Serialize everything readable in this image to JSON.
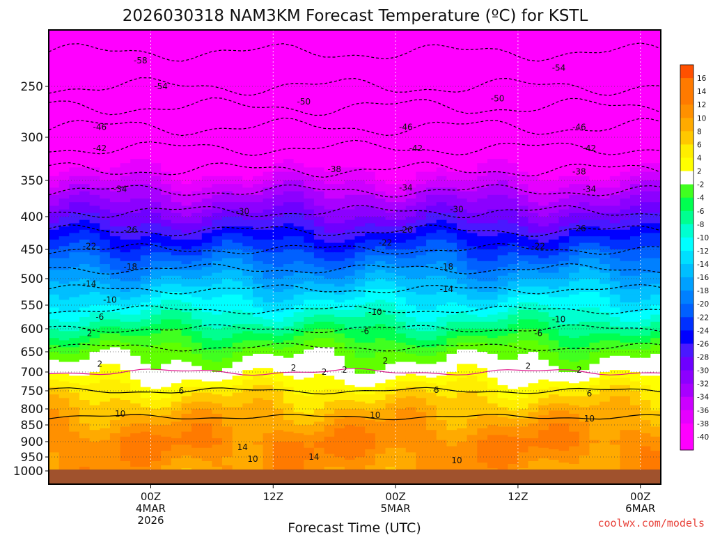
{
  "chart_data": {
    "type": "heatmap",
    "title": "2026030318 NAM3KM Forecast Temperature (ºC) for KSTL",
    "xlabel": "Forecast Time (UTC)",
    "ylabel": "",
    "credit": "coolwx.com/models",
    "x_range_hours": [
      -4,
      56
    ],
    "x_ticks": [
      {
        "hour": 6,
        "lines": [
          "00Z",
          "4MAR",
          "2026"
        ]
      },
      {
        "hour": 18,
        "lines": [
          "12Z"
        ]
      },
      {
        "hour": 30,
        "lines": [
          "00Z",
          "5MAR"
        ]
      },
      {
        "hour": 42,
        "lines": [
          "12Z"
        ]
      },
      {
        "hour": 54,
        "lines": [
          "00Z",
          "6MAR"
        ]
      }
    ],
    "y_range_hpa": [
      1025,
      195
    ],
    "y_ticks": [
      250,
      300,
      350,
      400,
      450,
      500,
      550,
      600,
      650,
      700,
      750,
      800,
      850,
      900,
      950,
      1000
    ],
    "colorbar_levels": [
      16,
      14,
      12,
      10,
      8,
      6,
      4,
      2,
      -2,
      -4,
      -6,
      -8,
      -10,
      -12,
      -14,
      -16,
      -18,
      -20,
      -22,
      -24,
      -26,
      -28,
      -30,
      -32,
      -34,
      -36,
      -38,
      -40
    ],
    "temperature_profile_hpa": [
      {
        "p": 200,
        "t": -60
      },
      {
        "p": 250,
        "t": -54
      },
      {
        "p": 300,
        "t": -44
      },
      {
        "p": 350,
        "t": -36
      },
      {
        "p": 400,
        "t": -29
      },
      {
        "p": 450,
        "t": -22
      },
      {
        "p": 500,
        "t": -16
      },
      {
        "p": 550,
        "t": -11
      },
      {
        "p": 600,
        "t": -6
      },
      {
        "p": 650,
        "t": -1
      },
      {
        "p": 700,
        "t": 2
      },
      {
        "p": 750,
        "t": 6
      },
      {
        "p": 800,
        "t": 9
      },
      {
        "p": 850,
        "t": 11
      },
      {
        "p": 900,
        "t": 13
      },
      {
        "p": 950,
        "t": 12
      },
      {
        "p": 1000,
        "t": 11
      }
    ],
    "contour_labels": [
      {
        "text": "-58",
        "hour": 5,
        "p": 225
      },
      {
        "text": "-54",
        "hour": 7,
        "p": 250
      },
      {
        "text": "-50",
        "hour": 21,
        "p": 265
      },
      {
        "text": "-46",
        "hour": 1,
        "p": 290
      },
      {
        "text": "-42",
        "hour": 1,
        "p": 313
      },
      {
        "text": "-38",
        "hour": 24,
        "p": 337
      },
      {
        "text": "-34",
        "hour": 3,
        "p": 362
      },
      {
        "text": "-30",
        "hour": 15,
        "p": 393
      },
      {
        "text": "-26",
        "hour": 4,
        "p": 420
      },
      {
        "text": "-22",
        "hour": 0,
        "p": 445
      },
      {
        "text": "-18",
        "hour": 4,
        "p": 480
      },
      {
        "text": "-14",
        "hour": 0,
        "p": 510
      },
      {
        "text": "-10",
        "hour": 2,
        "p": 540
      },
      {
        "text": "-6",
        "hour": 1,
        "p": 575
      },
      {
        "text": "2",
        "hour": 0,
        "p": 610
      },
      {
        "text": "2",
        "hour": 1,
        "p": 680
      },
      {
        "text": "2",
        "hour": 23,
        "p": 700
      },
      {
        "text": "2",
        "hour": 20,
        "p": 690
      },
      {
        "text": "6",
        "hour": 9,
        "p": 750
      },
      {
        "text": "10",
        "hour": 3,
        "p": 815
      },
      {
        "text": "14",
        "hour": 15,
        "p": 918
      },
      {
        "text": "10",
        "hour": 16,
        "p": 958
      },
      {
        "text": "14",
        "hour": 22,
        "p": 950
      },
      {
        "text": "-54",
        "hour": 46,
        "p": 232
      },
      {
        "text": "-50",
        "hour": 40,
        "p": 262
      },
      {
        "text": "-46",
        "hour": 31,
        "p": 290
      },
      {
        "text": "-42",
        "hour": 32,
        "p": 313
      },
      {
        "text": "-34",
        "hour": 31,
        "p": 360
      },
      {
        "text": "-30",
        "hour": 36,
        "p": 390
      },
      {
        "text": "-26",
        "hour": 31,
        "p": 420
      },
      {
        "text": "-22",
        "hour": 29,
        "p": 440
      },
      {
        "text": "-18",
        "hour": 35,
        "p": 480
      },
      {
        "text": "-14",
        "hour": 35,
        "p": 520
      },
      {
        "text": "-10",
        "hour": 28,
        "p": 565
      },
      {
        "text": "-6",
        "hour": 44,
        "p": 610
      },
      {
        "text": "-10",
        "hour": 46,
        "p": 580
      },
      {
        "text": "-6",
        "hour": 27,
        "p": 605
      },
      {
        "text": "2",
        "hour": 29,
        "p": 672
      },
      {
        "text": "2",
        "hour": 25,
        "p": 695
      },
      {
        "text": "6",
        "hour": 34,
        "p": 748
      },
      {
        "text": "10",
        "hour": 28,
        "p": 820
      },
      {
        "text": "10",
        "hour": 49,
        "p": 830
      },
      {
        "text": "10",
        "hour": 36,
        "p": 962
      },
      {
        "text": "6",
        "hour": 49,
        "p": 758
      },
      {
        "text": "2",
        "hour": 48,
        "p": 695
      },
      {
        "text": "-46",
        "hour": 48,
        "p": 290
      },
      {
        "text": "-42",
        "hour": 49,
        "p": 313
      },
      {
        "text": "-38",
        "hour": 48,
        "p": 340
      },
      {
        "text": "-34",
        "hour": 49,
        "p": 362
      },
      {
        "text": "-26",
        "hour": 48,
        "p": 418
      },
      {
        "text": "-22",
        "hour": 44,
        "p": 445
      },
      {
        "text": "2",
        "hour": 43,
        "p": 685
      },
      {
        "text": "-58",
        "hour": 5,
        "p": 225
      }
    ]
  }
}
